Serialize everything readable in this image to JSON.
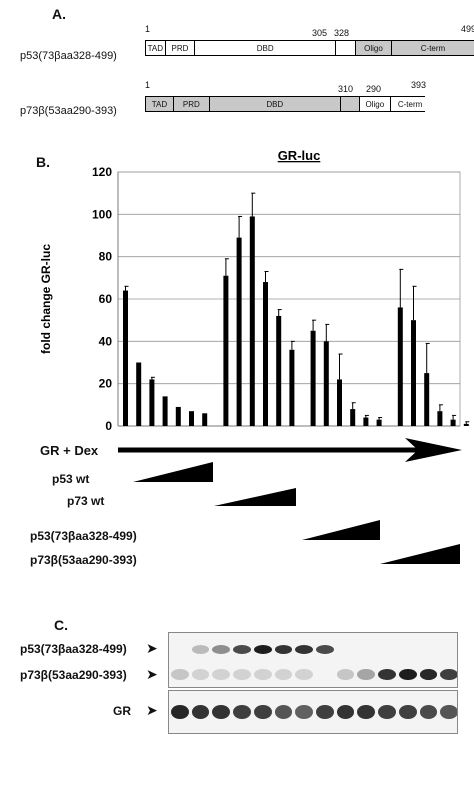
{
  "panel_a": {
    "label": "A.",
    "constructs": [
      {
        "name": "p53(73βaa328-499)",
        "start": "1",
        "breaks": [
          "305",
          "328"
        ],
        "end": "499",
        "domains": [
          {
            "label": "TAD",
            "shade": "#ffffff",
            "span": 0.06
          },
          {
            "label": "PRD",
            "shade": "#ffffff",
            "span": 0.09
          },
          {
            "label": "DBD",
            "shade": "#ffffff",
            "span": 0.43
          },
          {
            "label": "",
            "shade": "#ffffff",
            "span": 0.06
          },
          {
            "label": "Oligo",
            "shade": "#c8c8c8",
            "span": 0.11
          },
          {
            "label": "C-term",
            "shade": "#c8c8c8",
            "span": 0.25
          }
        ]
      },
      {
        "name": "p73β(53aa290-393)",
        "start": "1",
        "breaks": [
          "310",
          "290"
        ],
        "end": "393",
        "domains": [
          {
            "label": "TAD",
            "shade": "#c8c8c8",
            "span": 0.1
          },
          {
            "label": "PRD",
            "shade": "#c8c8c8",
            "span": 0.13
          },
          {
            "label": "DBD",
            "shade": "#c8c8c8",
            "span": 0.47
          },
          {
            "label": "",
            "shade": "#c8c8c8",
            "span": 0.07
          },
          {
            "label": "Oligo",
            "shade": "#ffffff",
            "span": 0.11
          },
          {
            "label": "C-term",
            "shade": "#ffffff",
            "span": 0.14
          }
        ]
      }
    ]
  },
  "panel_b": {
    "label": "B.",
    "chart_data": {
      "type": "bar",
      "title": "GR-luc",
      "ylabel": "fold change GR-luc",
      "ylim": [
        0,
        120
      ],
      "yticks": [
        0,
        20,
        40,
        60,
        80,
        100,
        120
      ],
      "grid": true,
      "values": [
        64,
        30,
        22,
        14,
        9,
        7,
        6,
        71,
        89,
        99,
        68,
        52,
        36,
        45,
        40,
        22,
        8,
        4,
        3,
        56,
        50,
        25,
        7,
        3,
        1
      ],
      "errors": [
        2,
        0,
        1,
        0,
        0,
        0,
        0,
        8,
        10,
        11,
        5,
        3,
        4,
        5,
        8,
        12,
        3,
        1,
        1,
        18,
        16,
        14,
        3,
        2,
        1
      ]
    },
    "arrow_label": "GR + Dex",
    "ramps": [
      {
        "label": "p53 wt"
      },
      {
        "label": "p73 wt"
      },
      {
        "label": "p53(73βaa328-499)"
      },
      {
        "label": "p73β(53aa290-393)"
      }
    ]
  },
  "panel_c": {
    "label": "C.",
    "blot_labels": [
      "p53(73βaa328-499)",
      "p73β(53aa290-393)",
      "GR"
    ],
    "upper_blot": {
      "p53_band_intensity": [
        0,
        0.25,
        0.45,
        0.75,
        0.95,
        0.85,
        0.85,
        0.75,
        0,
        0,
        0,
        0,
        0,
        0
      ],
      "p73_band_intensity": [
        0.2,
        0.15,
        0.15,
        0.15,
        0.15,
        0.15,
        0.15,
        0,
        0.2,
        0.35,
        0.85,
        0.95,
        0.9,
        0.8
      ]
    },
    "gr_blot": {
      "band_intensity": [
        0.9,
        0.85,
        0.85,
        0.8,
        0.8,
        0.7,
        0.65,
        0.8,
        0.85,
        0.85,
        0.8,
        0.8,
        0.75,
        0.7
      ]
    }
  }
}
